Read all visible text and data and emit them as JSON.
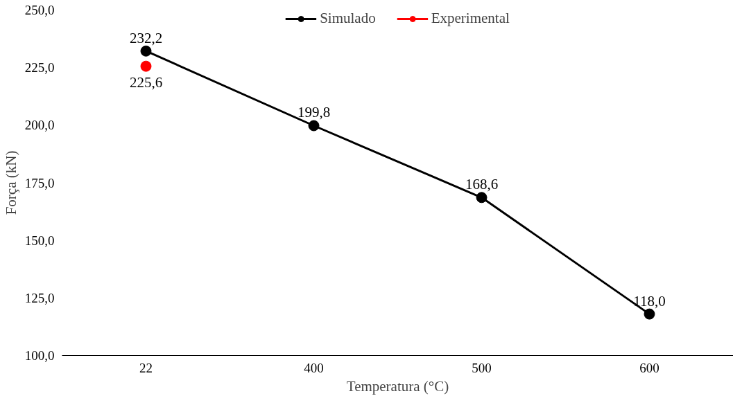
{
  "chart_data": {
    "type": "line",
    "xlabel": "Temperatura (°C)",
    "ylabel": "Força (kN)",
    "categories": [
      "22",
      "400",
      "500",
      "600"
    ],
    "series": [
      {
        "name": "Simulado",
        "color": "#000000",
        "values": [
          232.2,
          199.8,
          168.6,
          118.0
        ],
        "value_labels": [
          "232,2",
          "199,8",
          "168,6",
          "118,0"
        ]
      },
      {
        "name": "Experimental",
        "color": "#ff0000",
        "values": [
          225.6,
          null,
          null,
          null
        ],
        "value_labels": [
          "225,6",
          null,
          null,
          null
        ]
      }
    ],
    "ylim": [
      100,
      250
    ],
    "yticks": [
      {
        "value": 100,
        "label": "100,0"
      },
      {
        "value": 125,
        "label": "125,0"
      },
      {
        "value": 150,
        "label": "150,0"
      },
      {
        "value": 175,
        "label": "175,0"
      },
      {
        "value": 200,
        "label": "200,0"
      },
      {
        "value": 225,
        "label": "225,0"
      },
      {
        "value": 250,
        "label": "250,0"
      }
    ],
    "legend": "top",
    "marker": "circle",
    "line_style": "solid"
  }
}
